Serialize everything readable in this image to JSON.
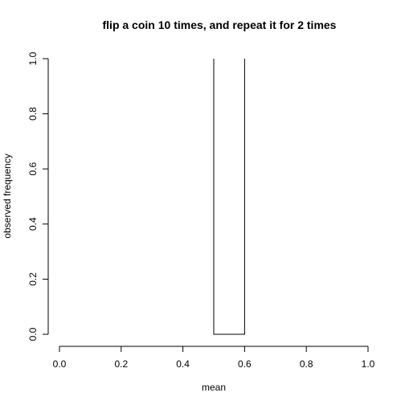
{
  "chart_data": {
    "type": "line",
    "title": "flip a coin 10 times, and repeat it for 2 times",
    "xlabel": "mean",
    "ylabel": "observed frequency",
    "xlim": [
      0.0,
      1.0
    ],
    "ylim": [
      0.0,
      1.0
    ],
    "x_ticks": [
      "0.0",
      "0.2",
      "0.4",
      "0.6",
      "0.8",
      "1.0"
    ],
    "y_ticks": [
      "0.0",
      "0.2",
      "0.4",
      "0.6",
      "0.8",
      "1.0"
    ],
    "grid": false,
    "series": [
      {
        "x": [
          0.5,
          0.5,
          0.6,
          0.6
        ],
        "y": [
          1.0,
          0.0,
          0.0,
          1.0
        ]
      }
    ]
  }
}
